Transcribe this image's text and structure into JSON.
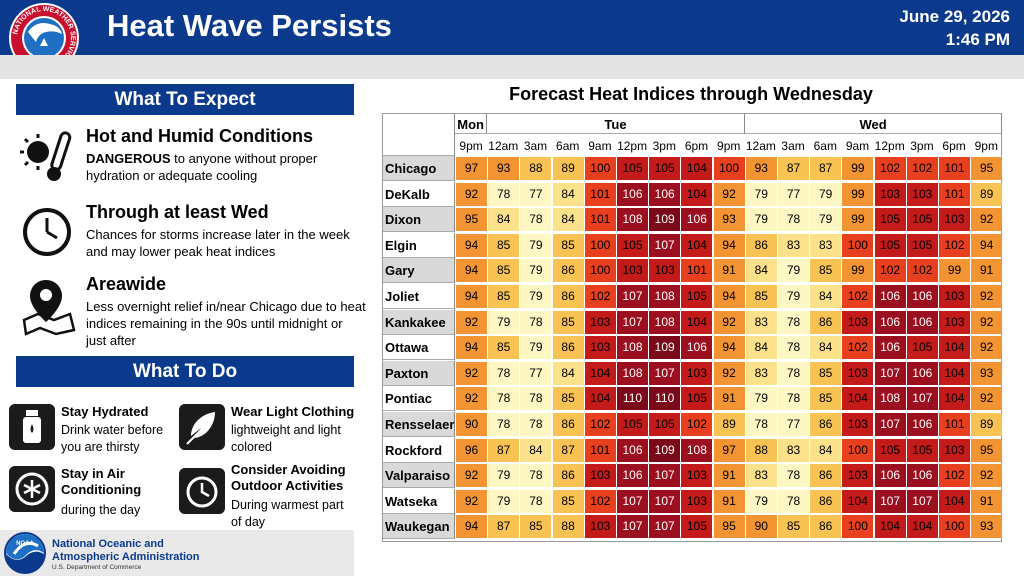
{
  "header": {
    "title": "Heat Wave Persists",
    "date": "June 29, 2026",
    "time": "1:46 PM",
    "logo_text": "NATIONAL WEATHER SERVICE"
  },
  "expect": {
    "heading": "What To Expect",
    "items": [
      {
        "icon": "sun-thermometer-icon",
        "title": "Hot and Humid Conditions",
        "strong": "DANGEROUS",
        "text": " to anyone without proper hydration or adequate cooling"
      },
      {
        "icon": "clock-icon",
        "title": "Through at least Wed",
        "text": "Chances for storms increase later in the week and may lower peak heat indices"
      },
      {
        "icon": "map-pin-icon",
        "title": "Areawide",
        "text": "Less overnight relief in/near Chicago due to heat indices remaining in the 90s until midnight or just after"
      }
    ]
  },
  "todo": {
    "heading": "What To Do",
    "items": [
      {
        "icon": "water-bottle-icon",
        "title": "Stay Hydrated",
        "text": "Drink water before you are thirsty"
      },
      {
        "icon": "feather-icon",
        "title": "Wear Light Clothing",
        "text": "lightweight and light colored"
      },
      {
        "icon": "air-conditioning-icon",
        "title": "Stay in Air Conditioning",
        "text": "during the day"
      },
      {
        "icon": "timer-icon",
        "title": "Consider Avoiding Outdoor Activities",
        "text": "During warmest part of day"
      }
    ]
  },
  "footer": {
    "name_line1": "National Oceanic and",
    "name_line2": "Atmospheric Administration",
    "dept": "U.S. Department of Commerce",
    "logo_text": "NOAA"
  },
  "forecast": {
    "title": "Forecast Heat Indices through Wednesday",
    "days": [
      {
        "label": "Mon",
        "times": [
          "9pm"
        ]
      },
      {
        "label": "Tue",
        "times": [
          "12am",
          "3am",
          "6am",
          "9am",
          "12pm",
          "3pm",
          "6pm",
          "9pm"
        ]
      },
      {
        "label": "Wed",
        "times": [
          "12am",
          "3am",
          "6am",
          "9am",
          "12pm",
          "3pm",
          "6pm",
          "9pm"
        ]
      }
    ],
    "rows": [
      {
        "city": "Chicago",
        "values": [
          97,
          93,
          88,
          89,
          100,
          105,
          105,
          104,
          100,
          93,
          87,
          87,
          99,
          102,
          102,
          101,
          95
        ]
      },
      {
        "city": "DeKalb",
        "values": [
          92,
          78,
          77,
          84,
          101,
          106,
          106,
          104,
          92,
          79,
          77,
          79,
          99,
          103,
          103,
          101,
          89
        ]
      },
      {
        "city": "Dixon",
        "values": [
          95,
          84,
          78,
          84,
          101,
          108,
          109,
          106,
          93,
          79,
          78,
          79,
          99,
          105,
          105,
          103,
          92
        ]
      },
      {
        "city": "Elgin",
        "values": [
          94,
          85,
          79,
          85,
          100,
          105,
          107,
          104,
          94,
          86,
          83,
          83,
          100,
          105,
          105,
          102,
          94
        ]
      },
      {
        "city": "Gary",
        "values": [
          94,
          85,
          79,
          86,
          100,
          103,
          103,
          101,
          91,
          84,
          79,
          85,
          99,
          102,
          102,
          99,
          91
        ]
      },
      {
        "city": "Joliet",
        "values": [
          94,
          85,
          79,
          86,
          102,
          107,
          108,
          105,
          94,
          85,
          79,
          84,
          102,
          106,
          106,
          103,
          92
        ]
      },
      {
        "city": "Kankakee",
        "values": [
          92,
          79,
          78,
          85,
          103,
          107,
          108,
          104,
          92,
          83,
          78,
          86,
          103,
          106,
          106,
          103,
          92
        ]
      },
      {
        "city": "Ottawa",
        "values": [
          94,
          85,
          79,
          86,
          103,
          108,
          109,
          106,
          94,
          84,
          78,
          84,
          102,
          106,
          105,
          104,
          92
        ]
      },
      {
        "city": "Paxton",
        "values": [
          92,
          78,
          77,
          84,
          104,
          108,
          107,
          103,
          92,
          83,
          78,
          85,
          103,
          107,
          106,
          104,
          93
        ]
      },
      {
        "city": "Pontiac",
        "values": [
          92,
          78,
          78,
          85,
          104,
          110,
          110,
          105,
          91,
          79,
          78,
          85,
          104,
          108,
          107,
          104,
          92
        ]
      },
      {
        "city": "Rensselaer",
        "values": [
          90,
          78,
          78,
          86,
          102,
          105,
          105,
          102,
          89,
          78,
          77,
          86,
          103,
          107,
          106,
          101,
          89
        ]
      },
      {
        "city": "Rockford",
        "values": [
          96,
          87,
          84,
          87,
          101,
          106,
          109,
          108,
          97,
          88,
          83,
          84,
          100,
          105,
          105,
          103,
          95
        ]
      },
      {
        "city": "Valparaiso",
        "values": [
          92,
          79,
          78,
          86,
          103,
          106,
          107,
          103,
          91,
          83,
          78,
          86,
          103,
          106,
          106,
          102,
          92
        ]
      },
      {
        "city": "Watseka",
        "values": [
          92,
          79,
          78,
          85,
          102,
          107,
          107,
          103,
          91,
          79,
          78,
          86,
          104,
          107,
          107,
          104,
          91
        ]
      },
      {
        "city": "Waukegan",
        "values": [
          94,
          87,
          85,
          88,
          103,
          107,
          107,
          105,
          95,
          90,
          85,
          86,
          100,
          104,
          104,
          100,
          93
        ]
      }
    ]
  },
  "colors": {
    "brand_blue": "#0b3a8c",
    "scale": [
      {
        "min": 0,
        "color": "#fdf7c3"
      },
      {
        "min": 80,
        "color": "#fbe28a"
      },
      {
        "min": 85,
        "color": "#f9c353"
      },
      {
        "min": 90,
        "color": "#f39433"
      },
      {
        "min": 100,
        "color": "#e8401e"
      },
      {
        "min": 103,
        "color": "#c41a1a"
      },
      {
        "min": 106,
        "color": "#9c0f1e"
      },
      {
        "min": 109,
        "color": "#7a0a1a"
      }
    ]
  }
}
